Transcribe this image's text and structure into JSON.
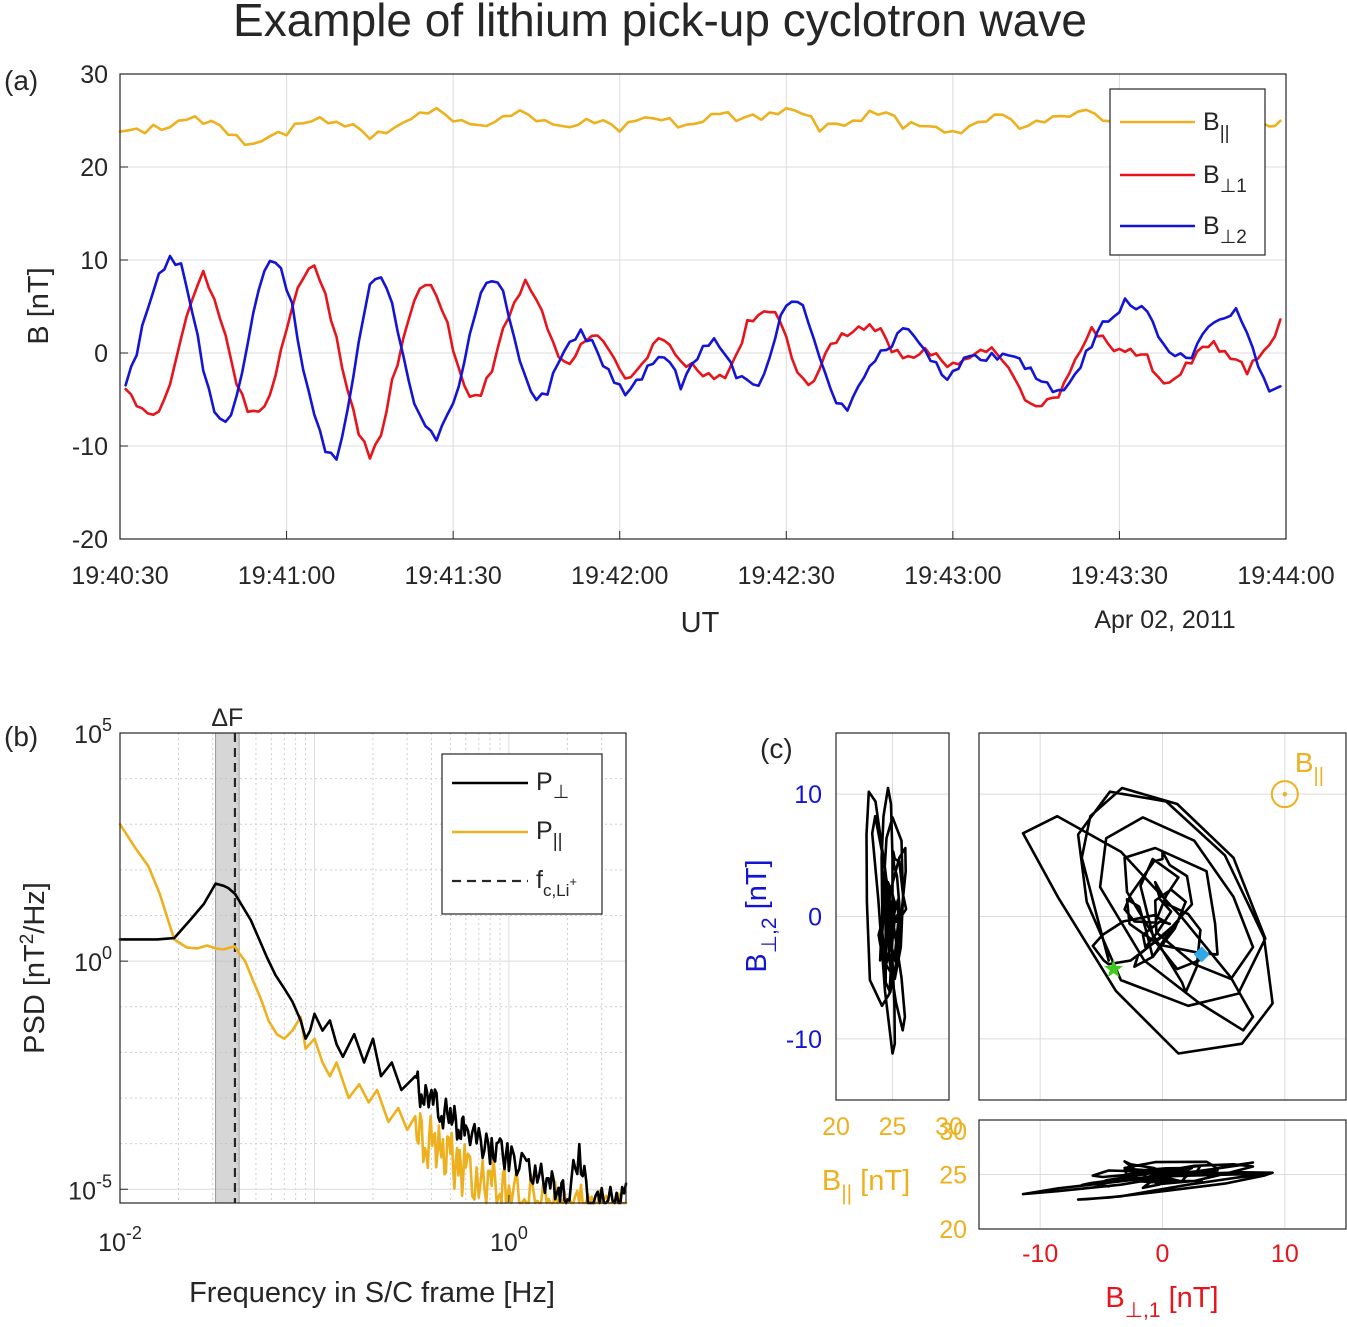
{
  "title": "Example of lithium pick-up cyclotron wave",
  "colors": {
    "parallel": "#EDB120",
    "perp1": "#E8141C",
    "perp2": "#1414D4",
    "psd_perp": "#000000",
    "star": "#3ECB1E",
    "diamond": "#2EA8E6",
    "shade": "#BBBBBB"
  },
  "chart_data": [
    {
      "type": "line",
      "panel": "(a)",
      "title": "",
      "xlabel": "UT",
      "ylabel": "B [nT]",
      "date_label": "Apr 02, 2011",
      "x_unit": "seconds after 19:40:30",
      "xlim": [
        0,
        210
      ],
      "ylim": [
        -20,
        30
      ],
      "xticks": [
        0,
        30,
        60,
        90,
        120,
        150,
        180,
        210
      ],
      "xtick_labels": [
        "19:40:30",
        "19:41:00",
        "19:41:30",
        "19:42:00",
        "19:42:30",
        "19:43:00",
        "19:43:30",
        "19:44:00"
      ],
      "yticks": [
        -20,
        -10,
        0,
        10,
        20,
        30
      ],
      "ytick_labels": [
        "-20",
        "-10",
        "0",
        "10",
        "20",
        "30"
      ],
      "legend_position": "top-right",
      "series": [
        {
          "name": "B||",
          "legend": {
            "main": "B",
            "sub": "||"
          },
          "color": "#EDB120",
          "x": [
            0,
            3,
            6,
            9,
            12,
            15,
            18,
            21,
            24,
            27,
            30,
            33,
            36,
            39,
            42,
            45,
            48,
            51,
            54,
            57,
            60,
            63,
            66,
            69,
            72,
            75,
            78,
            81,
            84,
            87,
            90,
            93,
            96,
            99,
            102,
            105,
            108,
            111,
            114,
            117,
            120,
            123,
            126,
            129,
            132,
            135,
            138,
            141,
            144,
            147,
            150,
            153,
            156,
            159,
            162,
            165,
            168,
            171,
            174,
            177,
            180,
            183,
            186,
            189,
            192,
            195,
            198,
            201,
            204,
            207,
            209
          ],
          "values": [
            23.8,
            24.1,
            24.0,
            24.6,
            25.0,
            25.0,
            24.6,
            23.0,
            22.6,
            22.9,
            23.8,
            24.9,
            25.3,
            25.0,
            24.0,
            23.2,
            23.6,
            25.0,
            26.2,
            25.9,
            25.0,
            24.2,
            24.6,
            25.8,
            26.0,
            25.2,
            24.0,
            24.3,
            25.2,
            25.1,
            24.3,
            24.6,
            25.3,
            24.9,
            24.5,
            25.3,
            25.6,
            25.3,
            25.2,
            25.7,
            26.4,
            25.6,
            24.4,
            24.4,
            25.0,
            25.8,
            25.6,
            24.6,
            24.3,
            24.7,
            23.6,
            24.1,
            25.0,
            25.4,
            24.7,
            24.9,
            25.4,
            25.3,
            25.7,
            25.4,
            25.0,
            25.2,
            25.8,
            26.2,
            25.1,
            24.7,
            24.3,
            24.3,
            24.4,
            24.4,
            24.4
          ]
        },
        {
          "name": "B⊥1",
          "legend": {
            "main": "B",
            "sub": "⊥1"
          },
          "color": "#E8141C",
          "x": [
            1,
            3,
            5,
            7,
            9,
            11,
            13,
            15,
            17,
            19,
            21,
            23,
            25,
            27,
            29,
            31,
            33,
            35,
            37,
            39,
            41,
            43,
            45,
            47,
            49,
            51,
            53,
            55,
            57,
            59,
            61,
            63,
            65,
            67,
            69,
            71,
            73,
            75,
            77,
            79,
            81,
            83,
            85,
            87,
            89,
            91,
            93,
            95,
            97,
            99,
            101,
            103,
            105,
            107,
            109,
            111,
            113,
            115,
            117,
            119,
            121,
            123,
            125,
            127,
            129,
            131,
            133,
            135,
            137,
            139,
            141,
            143,
            145,
            147,
            149,
            151,
            153,
            155,
            157,
            159,
            161,
            163,
            165,
            167,
            169,
            171,
            173,
            175,
            177,
            179,
            181,
            183,
            185,
            187,
            189,
            191,
            193,
            195,
            197,
            199,
            201,
            203,
            205,
            207,
            209
          ],
          "values": [
            -4.4,
            -5.4,
            -6.6,
            -5.9,
            -3.3,
            1.2,
            5.8,
            8.4,
            6.2,
            2.1,
            -3.4,
            -6.2,
            -6.9,
            -4.3,
            0.3,
            5.1,
            8.3,
            9.0,
            6.5,
            1.3,
            -3.8,
            -8.5,
            -11.4,
            -8.6,
            -3.4,
            1.6,
            5.6,
            7.4,
            6.6,
            2.9,
            -1.5,
            -5.1,
            -4.6,
            -1.6,
            2.6,
            5.8,
            7.4,
            5.6,
            2.6,
            -0.5,
            -0.6,
            0.7,
            1.9,
            1.0,
            -0.8,
            -2.3,
            -2.0,
            -0.1,
            1.3,
            0.6,
            -0.8,
            -1.3,
            -1.9,
            -2.9,
            -2.7,
            -0.3,
            3.1,
            4.5,
            4.3,
            3.6,
            -0.6,
            -3.1,
            -2.9,
            -0.4,
            1.6,
            1.9,
            2.8,
            3.1,
            2.1,
            0.4,
            -0.6,
            -0.2,
            0.7,
            -0.5,
            -1.4,
            -1.6,
            -0.2,
            0.6,
            0.5,
            -0.7,
            -3.2,
            -4.9,
            -5.7,
            -4.8,
            -4.4,
            -2.6,
            0.3,
            2.4,
            2.0,
            0.6,
            0.0,
            0.0,
            -0.7,
            -2.6,
            -3.1,
            -2.3,
            -0.6,
            0.3,
            1.3,
            -0.1,
            -0.8,
            -1.8,
            -0.7,
            1.2,
            3.2
          ]
        },
        {
          "name": "B⊥2",
          "legend": {
            "main": "B",
            "sub": "⊥2"
          },
          "color": "#1414D4",
          "x": [
            1,
            3,
            5,
            7,
            9,
            11,
            13,
            15,
            17,
            19,
            21,
            23,
            25,
            27,
            29,
            31,
            33,
            35,
            37,
            39,
            41,
            43,
            45,
            47,
            49,
            51,
            53,
            55,
            57,
            59,
            61,
            63,
            65,
            67,
            69,
            71,
            73,
            75,
            77,
            79,
            81,
            83,
            85,
            87,
            89,
            91,
            93,
            95,
            97,
            99,
            101,
            103,
            105,
            107,
            109,
            111,
            113,
            115,
            117,
            119,
            121,
            123,
            125,
            127,
            129,
            131,
            133,
            135,
            137,
            139,
            141,
            143,
            145,
            147,
            149,
            151,
            153,
            155,
            157,
            159,
            161,
            163,
            165,
            167,
            169,
            171,
            173,
            175,
            177,
            179,
            181,
            183,
            185,
            187,
            189,
            191,
            193,
            195,
            197,
            199,
            201,
            203,
            205,
            207,
            209
          ],
          "values": [
            -3.6,
            0.2,
            4.8,
            8.2,
            10.5,
            9.2,
            4.8,
            -1.8,
            -6.3,
            -7.3,
            -5.2,
            1.2,
            6.7,
            10.2,
            9.4,
            5.0,
            -1.7,
            -7.1,
            -10.4,
            -11.2,
            -6.1,
            1.5,
            6.8,
            8.2,
            5.3,
            -0.1,
            -5.0,
            -8.2,
            -9.3,
            -7.0,
            -3.6,
            2.4,
            6.4,
            8.1,
            6.2,
            1.6,
            -2.5,
            -5.1,
            -3.9,
            -1.3,
            1.3,
            2.2,
            1.2,
            -1.0,
            -3.3,
            -4.1,
            -3.2,
            -1.6,
            -0.4,
            -1.2,
            -3.3,
            -1.3,
            0.8,
            1.4,
            -0.6,
            -2.3,
            -3.0,
            -3.1,
            -0.6,
            3.7,
            5.6,
            4.8,
            2.0,
            -2.1,
            -5.4,
            -6.2,
            -4.1,
            -1.1,
            0.2,
            1.0,
            2.8,
            1.4,
            0.4,
            -1.4,
            -2.5,
            -1.5,
            -0.4,
            -0.6,
            -0.6,
            0.1,
            -0.4,
            -1.5,
            -2.4,
            -3.6,
            -3.9,
            -3.6,
            -1.4,
            1.0,
            3.3,
            4.2,
            5.3,
            4.7,
            4.5,
            1.8,
            0.6,
            -0.4,
            -0.5,
            1.7,
            3.2,
            4.2,
            4.7,
            2.5,
            -1.9,
            -4.3,
            -3.5
          ]
        }
      ]
    },
    {
      "type": "line",
      "panel": "(b)",
      "xscale": "log",
      "yscale": "log",
      "xlabel": "Frequency in S/C frame [Hz]",
      "ylabel": {
        "main": "PSD [nT",
        "sup": "2",
        "tail": "/Hz]"
      },
      "xlim": [
        0.01,
        4
      ],
      "ylim": [
        5e-06,
        100000.0
      ],
      "xtick_labels": [
        {
          "base": "10",
          "exp": "-2"
        },
        {
          "base": "10",
          "exp": "0"
        }
      ],
      "ytick_labels": [
        {
          "base": "10",
          "exp": "-5"
        },
        {
          "base": "10",
          "exp": "0"
        },
        {
          "base": "10",
          "exp": "5"
        }
      ],
      "band_label": "ΔF",
      "band_hz": [
        0.031,
        0.041
      ],
      "fc_li_hz": 0.039,
      "legend_position": "top-right",
      "series": [
        {
          "name": "P⊥",
          "legend": {
            "main": "P",
            "sub": "⊥"
          },
          "color": "#000000",
          "f": [
            0.01,
            0.0125,
            0.0155,
            0.019,
            0.023,
            0.027,
            0.031,
            0.034,
            0.036,
            0.039,
            0.043,
            0.047,
            0.052,
            0.057,
            0.063,
            0.07,
            0.077,
            0.085,
            0.09,
            0.095,
            0.1,
            0.11,
            0.12,
            0.13,
            0.14,
            0.16,
            0.18,
            0.2,
            0.22,
            0.25,
            0.28,
            0.3,
            0.33,
            0.36,
            0.4,
            0.45,
            0.5,
            0.55,
            0.6,
            0.7,
            0.8,
            0.9,
            1.0,
            1.2,
            1.4,
            1.6,
            1.8,
            2.0,
            2.3,
            2.6,
            3.0,
            3.5,
            4.0
          ],
          "psd": [
            3,
            3,
            3,
            3.2,
            8,
            18,
            50,
            45,
            40,
            30,
            15,
            8,
            3,
            1.2,
            0.5,
            0.25,
            0.13,
            0.05,
            0.02,
            0.03,
            0.07,
            0.03,
            0.05,
            0.015,
            0.008,
            0.025,
            0.006,
            0.02,
            0.003,
            0.006,
            0.0015,
            0.002,
            0.003,
            0.0008,
            0.0015,
            0.0004,
            0.0006,
            0.0002,
            0.00025,
            0.0001,
            8e-05,
            6e-05,
            5e-05,
            3e-05,
            2e-05,
            1.5e-05,
            1e-05,
            8e-06,
            6e-05,
            5e-06,
            5e-06,
            6e-06,
            6e-06
          ]
        },
        {
          "name": "P||",
          "legend": {
            "main": "P",
            "sub": "||"
          },
          "color": "#EDB120",
          "f": [
            0.01,
            0.012,
            0.014,
            0.016,
            0.019,
            0.022,
            0.025,
            0.028,
            0.031,
            0.034,
            0.037,
            0.039,
            0.041,
            0.044,
            0.048,
            0.053,
            0.058,
            0.064,
            0.07,
            0.077,
            0.085,
            0.09,
            0.1,
            0.11,
            0.12,
            0.13,
            0.15,
            0.17,
            0.19,
            0.21,
            0.24,
            0.27,
            0.3,
            0.33,
            0.37,
            0.41,
            0.45,
            0.5,
            0.55,
            0.6,
            0.7,
            0.8,
            0.9,
            1.0,
            1.2,
            1.4,
            1.6,
            1.8,
            2.0,
            2.3,
            2.6,
            3.0,
            3.5,
            4.0
          ],
          "psd": [
            1000,
            300,
            120,
            30,
            3,
            2,
            1.9,
            2.2,
            1.9,
            1.8,
            2.0,
            2.1,
            1.5,
            1.0,
            0.4,
            0.15,
            0.05,
            0.025,
            0.02,
            0.03,
            0.06,
            0.012,
            0.02,
            0.006,
            0.003,
            0.006,
            0.001,
            0.002,
            0.0008,
            0.0015,
            0.0003,
            0.0006,
            0.0002,
            0.0004,
            8e-05,
            0.00015,
            5e-05,
            6e-05,
            2e-05,
            3e-05,
            1e-05,
            2e-05,
            8e-06,
            1.5e-05,
            4e-06,
            1e-05,
            3e-06,
            5e-06,
            2e-06,
            4e-06,
            2e-06,
            3e-06,
            2e-06,
            3e-06
          ]
        }
      ],
      "extra_legend": {
        "main": "f",
        "sub": "c,Li",
        "sup": "+",
        "style": "dashed"
      }
    },
    {
      "type": "scatter",
      "panel": "(c)",
      "subplot": "hodogram B⊥1 vs B⊥2",
      "xlim": [
        -15,
        15
      ],
      "ylim": [
        -15,
        15
      ],
      "xticks": [
        -10,
        0,
        10
      ],
      "yticks": [
        -10,
        0,
        10
      ],
      "xtick_labels": [
        "-10",
        "0",
        "10"
      ],
      "ytick_labels": [
        "-10",
        "0",
        "10"
      ],
      "xlabel": {
        "main": "B",
        "sub": "⊥,1",
        "tail": " [nT]"
      },
      "ylabel": {
        "main": "B",
        "sub": "⊥,2",
        "tail": " [nT]"
      },
      "annotation": {
        "main": "B",
        "sub": "||"
      },
      "start_marker_xy": [
        -4.0,
        -4.3
      ],
      "end_marker_xy": [
        3.2,
        -3.1
      ],
      "b_parallel_symbol_xy": [
        10,
        10
      ]
    },
    {
      "type": "scatter",
      "subplot": "B|| vs B⊥2",
      "xlim": [
        20,
        30
      ],
      "ylim": [
        -15,
        15
      ],
      "xticks": [
        20,
        25,
        30
      ],
      "xtick_labels": [
        "20",
        "25",
        "30"
      ],
      "xlabel": {
        "main": "B",
        "sub": "||",
        "tail": " [nT]"
      }
    },
    {
      "type": "scatter",
      "subplot": "B⊥1 vs B||",
      "xlim": [
        -15,
        15
      ],
      "ylim": [
        20,
        30
      ],
      "yticks": [
        20,
        25
      ],
      "ytick_labels": [
        "20",
        "25"
      ]
    }
  ]
}
